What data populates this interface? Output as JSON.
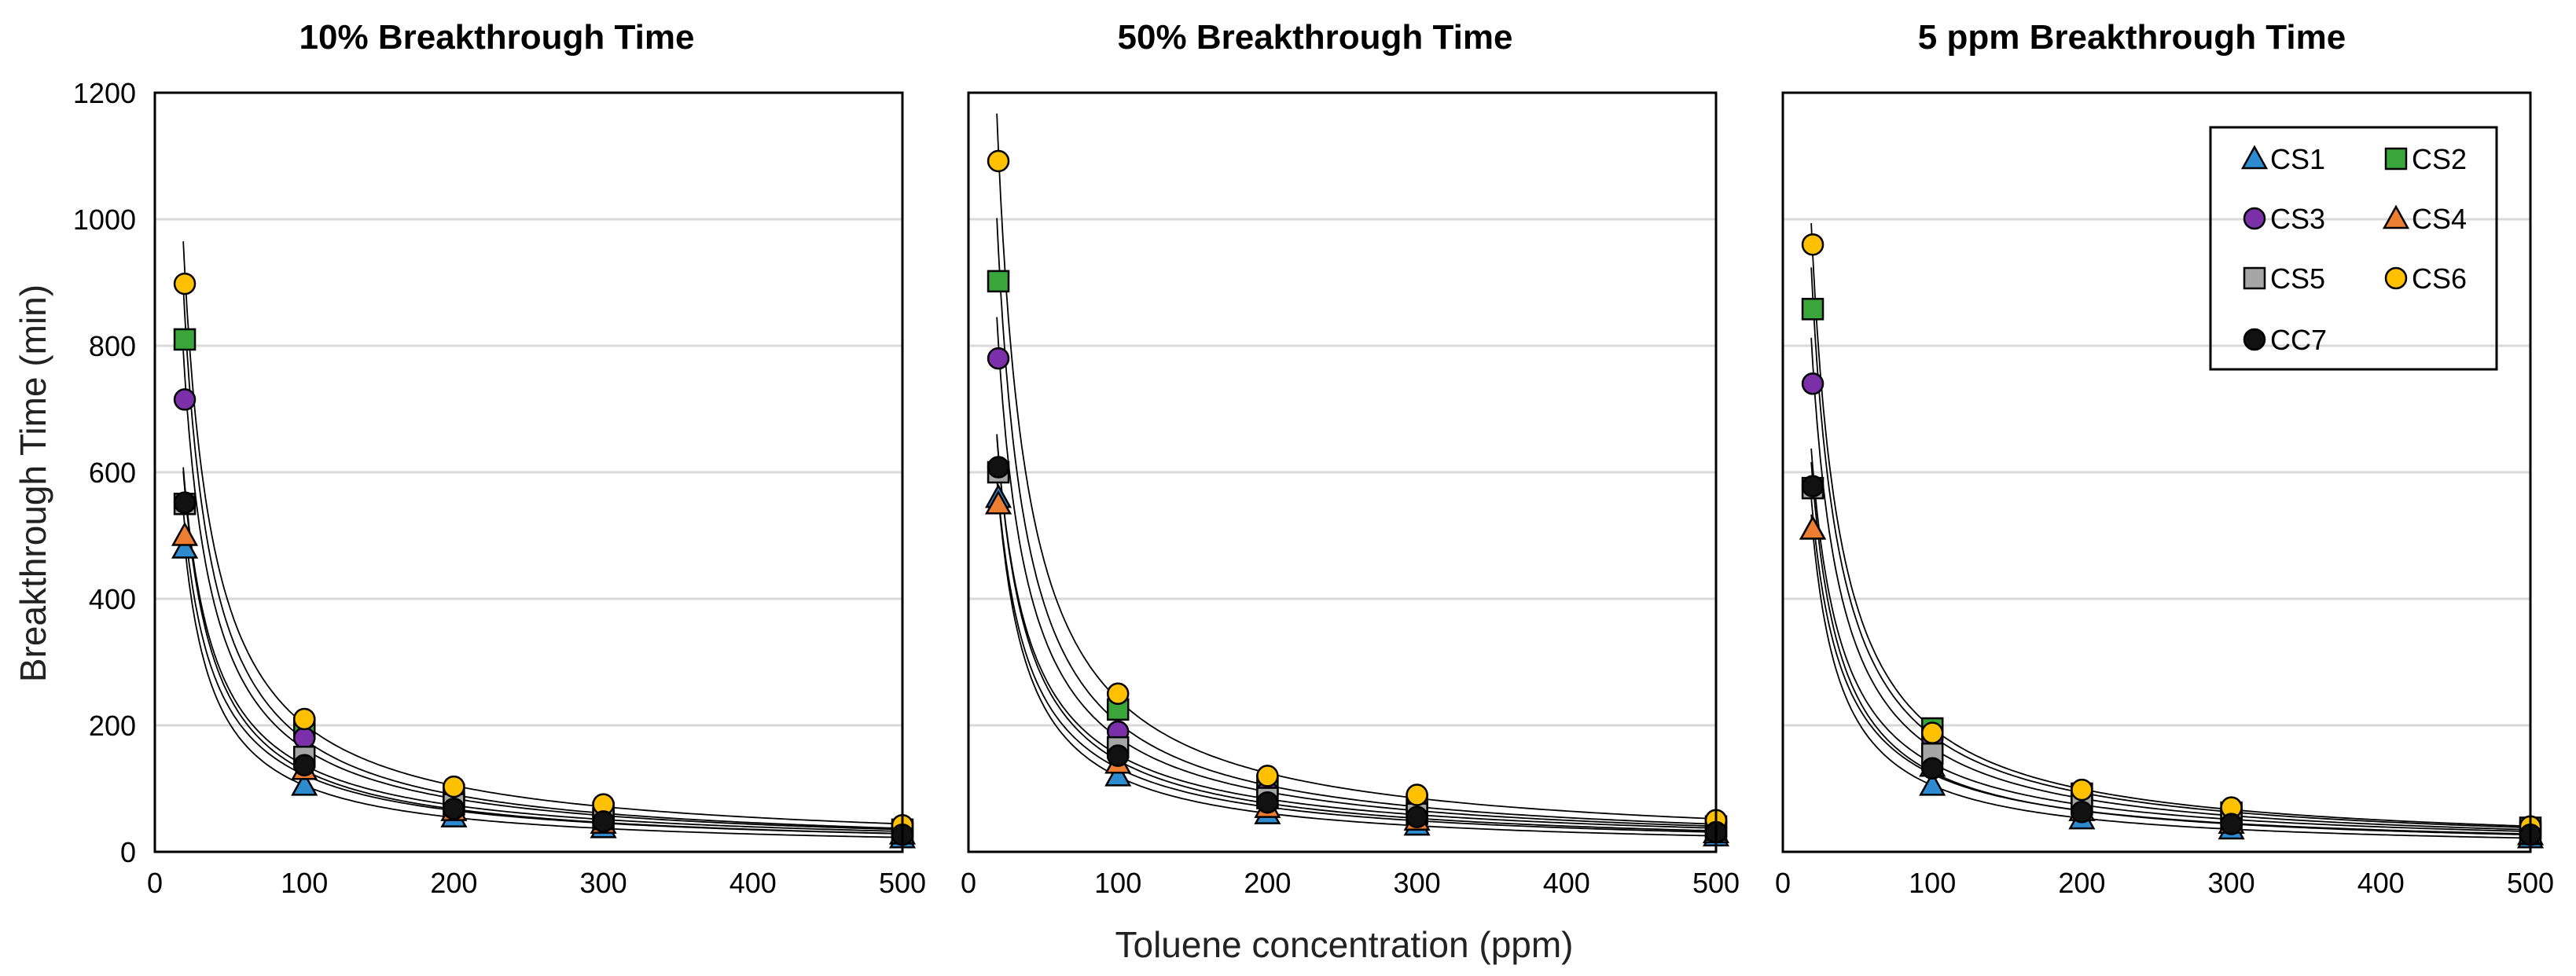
{
  "chart_data": {
    "type": "scatter",
    "xlabel": "Toluene concentration (ppm)",
    "ylabel": "Breakthrough Time (min)",
    "xlim": [
      0,
      500
    ],
    "ylim": [
      0,
      1200
    ],
    "xticks": [
      "0",
      "100",
      "200",
      "300",
      "400",
      "500"
    ],
    "yticks": [
      "0",
      "200",
      "400",
      "600",
      "800",
      "1000",
      "1200"
    ],
    "x": [
      20,
      100,
      200,
      300,
      500
    ],
    "grid": "horizontal",
    "fit": "power-law curve through each series",
    "legend_position": "top-right of third panel",
    "legend": [
      {
        "name": "CS1",
        "marker": "triangle",
        "color": "#2e8bd0"
      },
      {
        "name": "CS2",
        "marker": "square",
        "color": "#3aa53a"
      },
      {
        "name": "CS3",
        "marker": "circle",
        "color": "#7b2fa8"
      },
      {
        "name": "CS4",
        "marker": "triangle",
        "color": "#ed7d31"
      },
      {
        "name": "CS5",
        "marker": "square",
        "color": "#a6a6a6"
      },
      {
        "name": "CS6",
        "marker": "circle",
        "color": "#ffc000"
      },
      {
        "name": "CC7",
        "marker": "circle",
        "color": "#111111"
      }
    ],
    "panels": [
      {
        "title": "10% Breakthrough Time",
        "series": [
          {
            "name": "CS1",
            "values": [
              480,
              105,
              55,
              38,
              22
            ]
          },
          {
            "name": "CS2",
            "values": [
              810,
              195,
              90,
              62,
              35
            ]
          },
          {
            "name": "CS3",
            "values": [
              715,
              180,
              85,
              58,
              33
            ]
          },
          {
            "name": "CS4",
            "values": [
              500,
              130,
              65,
              45,
              28
            ]
          },
          {
            "name": "CS5",
            "values": [
              550,
              150,
              75,
              52,
              30
            ]
          },
          {
            "name": "CS6",
            "values": [
              898,
              210,
              103,
              75,
              42
            ]
          },
          {
            "name": "CC7",
            "values": [
              552,
              137,
              68,
              48,
              27
            ]
          }
        ]
      },
      {
        "title": "50% Breakthrough Time",
        "series": [
          {
            "name": "CS1",
            "values": [
              560,
              120,
              60,
              42,
              25
            ]
          },
          {
            "name": "CS2",
            "values": [
              902,
              225,
              105,
              75,
              40
            ]
          },
          {
            "name": "CS3",
            "values": [
              780,
              190,
              95,
              68,
              38
            ]
          },
          {
            "name": "CS4",
            "values": [
              550,
              140,
              70,
              50,
              30
            ]
          },
          {
            "name": "CS5",
            "values": [
              600,
              165,
              85,
              60,
              35
            ]
          },
          {
            "name": "CS6",
            "values": [
              1092,
              250,
              120,
              90,
              50
            ]
          },
          {
            "name": "CC7",
            "values": [
              608,
              152,
              78,
              55,
              31
            ]
          }
        ]
      },
      {
        "title": "5 ppm Breakthrough Time",
        "series": [
          {
            "name": "CS1",
            "values": [
              510,
              105,
              52,
              36,
              22
            ]
          },
          {
            "name": "CS2",
            "values": [
              858,
              195,
              92,
              62,
              38
            ]
          },
          {
            "name": "CS3",
            "values": [
              740,
              178,
              85,
              58,
              33
            ]
          },
          {
            "name": "CS4",
            "values": [
              510,
              135,
              65,
              45,
              27
            ]
          },
          {
            "name": "CS5",
            "values": [
              575,
              155,
              75,
              52,
              30
            ]
          },
          {
            "name": "CS6",
            "values": [
              960,
              188,
              98,
              70,
              40
            ]
          },
          {
            "name": "CC7",
            "values": [
              578,
              132,
              63,
              44,
              27
            ]
          }
        ]
      }
    ]
  }
}
